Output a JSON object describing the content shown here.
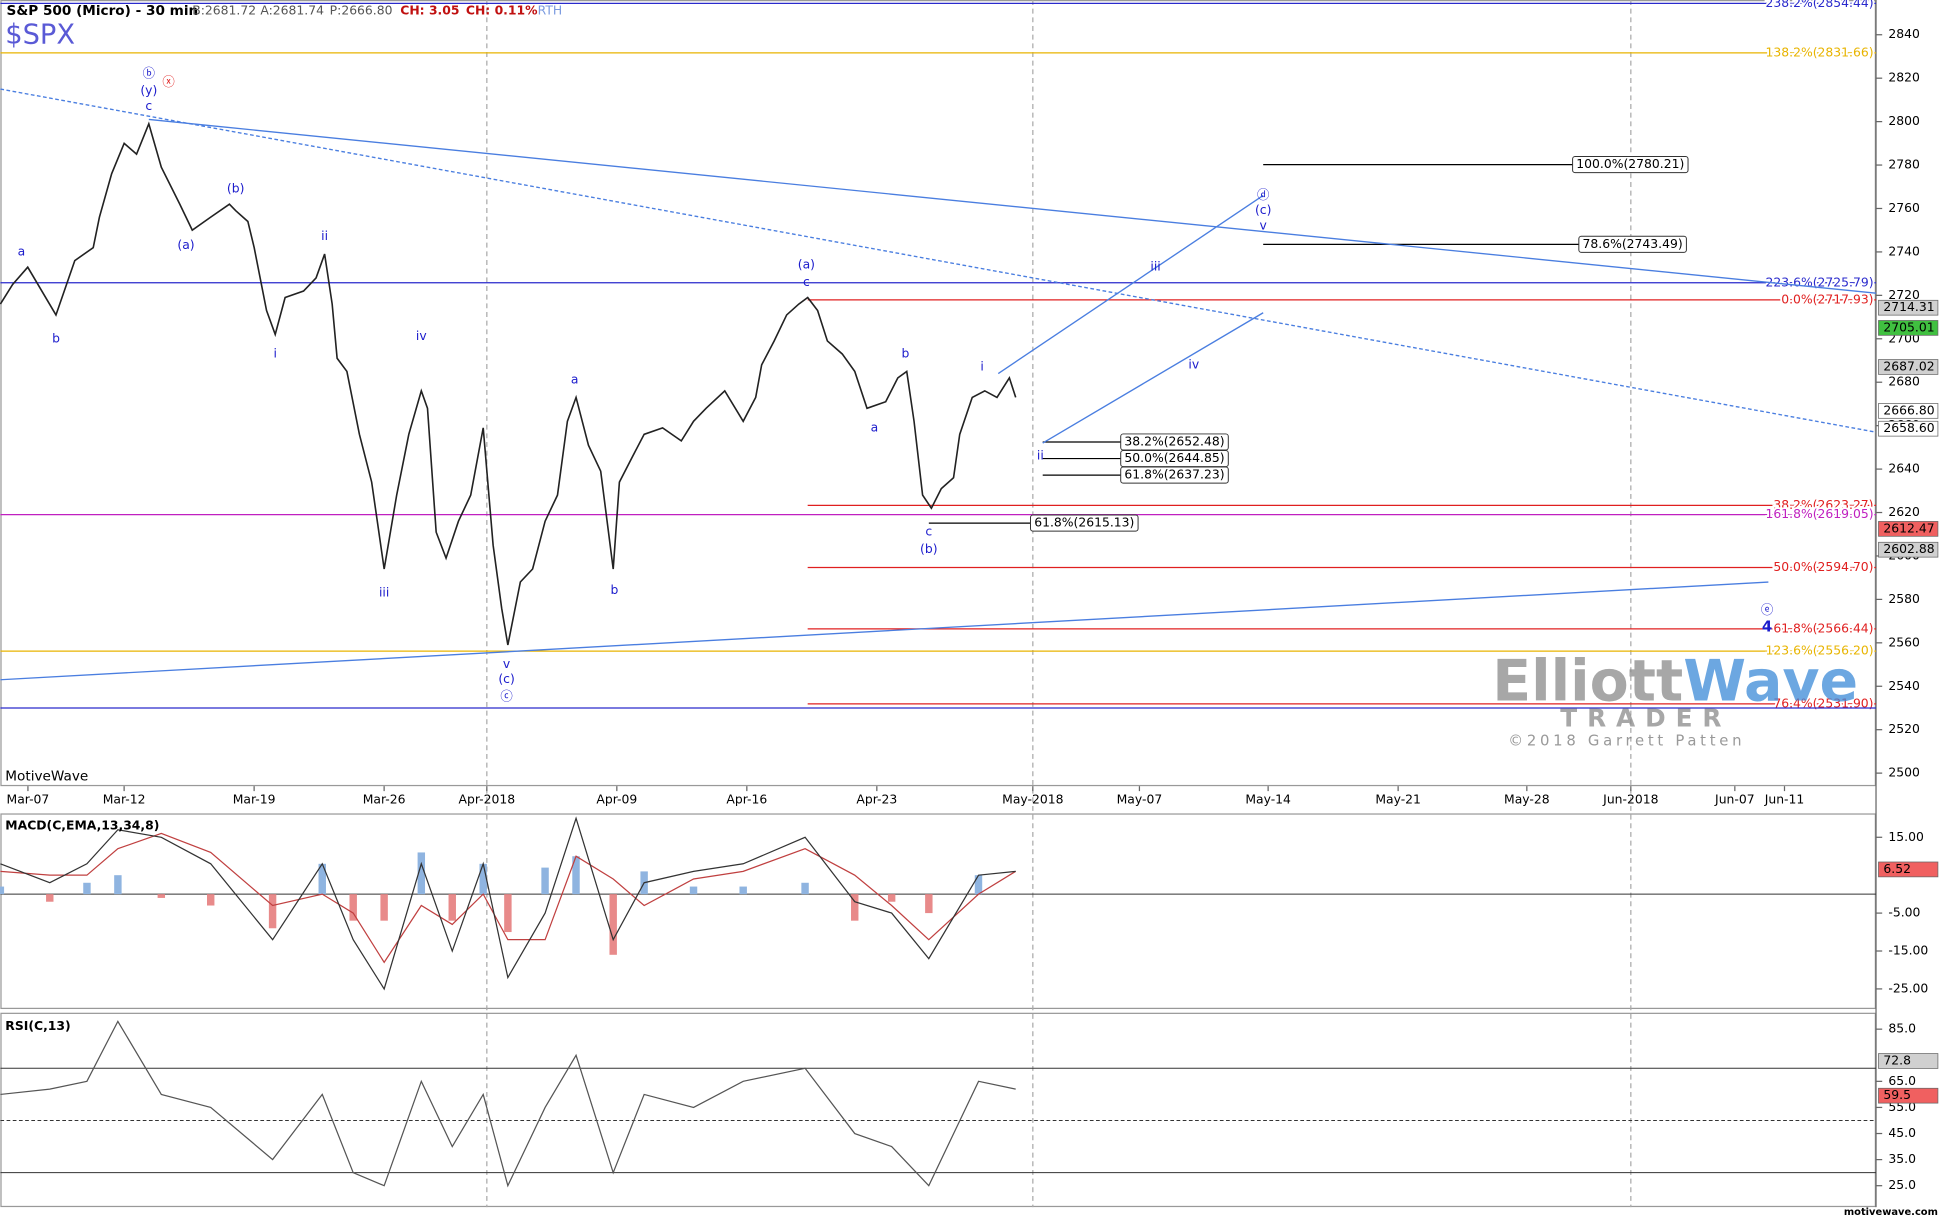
{
  "chart_data": [
    {
      "type": "line",
      "title": "S&P 500 (Micro) - 30 min",
      "symbol": "$SPX",
      "quote": [
        "B:2681.72",
        "A:2681.74",
        "P:2666.80"
      ],
      "change": [
        "CH: 3.05",
        "CH: 0.11%"
      ],
      "session": "RTH",
      "source": "MotiveWave",
      "color": "#222222",
      "annotation_color": "#1c1ccc",
      "xlim": [
        -4.76,
        67.38
      ],
      "ylim": [
        2494,
        2856
      ],
      "yticks": [
        2500,
        2520,
        2540,
        2560,
        2580,
        2600,
        2620,
        2640,
        2660,
        2680,
        2700,
        2720,
        2740,
        2760,
        2780,
        2800,
        2820,
        2840
      ],
      "xticks": [
        {
          "value": -3.7,
          "label": "Mar-07"
        },
        {
          "value": 0,
          "label": "Mar-12"
        },
        {
          "value": 5,
          "label": "Mar-19"
        },
        {
          "value": 10,
          "label": "Mar-26"
        },
        {
          "value": 13.95,
          "label": "Apr-2018"
        },
        {
          "value": 18.95,
          "label": "Apr-09"
        },
        {
          "value": 23.95,
          "label": "Apr-16"
        },
        {
          "value": 28.95,
          "label": "Apr-23"
        },
        {
          "value": 34.95,
          "label": "May-2018"
        },
        {
          "value": 39.05,
          "label": "May-07"
        },
        {
          "value": 44,
          "label": "May-14"
        },
        {
          "value": 49,
          "label": "May-21"
        },
        {
          "value": 53.95,
          "label": "May-28"
        },
        {
          "value": 57.95,
          "label": "Jun-2018"
        },
        {
          "value": 61.95,
          "label": "Jun-07"
        },
        {
          "value": 63.86,
          "label": "Jun-11"
        }
      ],
      "xgrid": [
        13.95,
        34.95,
        57.95
      ],
      "x": [
        -4.76,
        -4.29,
        -3.71,
        -2.62,
        -1.9,
        -1.19,
        -0.95,
        -0.48,
        0,
        0.48,
        0.95,
        1.43,
        2.14,
        2.62,
        3.33,
        4.05,
        4.29,
        4.76,
        5,
        5.48,
        5.81,
        6.19,
        6.9,
        7.38,
        7.71,
        8,
        8.19,
        8.57,
        9.05,
        9.52,
        10,
        10.48,
        10.95,
        11.43,
        11.67,
        12,
        12.38,
        12.86,
        13.33,
        13.81,
        14.19,
        14.52,
        14.76,
        15.24,
        15.71,
        16.19,
        16.67,
        17.05,
        17.38,
        17.86,
        18.33,
        18.81,
        19.05,
        19.52,
        20,
        20.71,
        21.43,
        21.9,
        22.38,
        23.1,
        23.81,
        24.29,
        24.52,
        25,
        25.48,
        25.95,
        26.29,
        26.67,
        27.05,
        27.62,
        28.1,
        28.57,
        29.29,
        29.76,
        30.1,
        30.38,
        30.71,
        31.05,
        31.43,
        31.9,
        32.14,
        32.62,
        33.1,
        33.57,
        34.05,
        34.29
      ],
      "values": [
        2716,
        2725,
        2733,
        2711,
        2736,
        2742,
        2756,
        2776,
        2790,
        2785,
        2799,
        2779,
        2762,
        2750,
        2756,
        2762,
        2759,
        2754,
        2742,
        2713,
        2702,
        2719,
        2722,
        2728,
        2739,
        2716,
        2691,
        2685,
        2656,
        2634,
        2594,
        2628,
        2656,
        2676,
        2668,
        2611,
        2599,
        2616,
        2628,
        2659,
        2605,
        2576,
        2559,
        2588,
        2594,
        2616,
        2628,
        2662,
        2673,
        2651,
        2639,
        2594,
        2634,
        2645,
        2656,
        2659,
        2653,
        2662,
        2668,
        2676,
        2662,
        2673,
        2688,
        2699,
        2711,
        2716,
        2719,
        2713,
        2699,
        2693,
        2685,
        2668,
        2671,
        2682,
        2685,
        2662,
        2628,
        2622,
        2631,
        2636,
        2656,
        2673,
        2676,
        2673,
        2682,
        2673
      ],
      "levels": [
        {
          "label": "238.2%(2854.44)",
          "value": 2854.44,
          "color": "#2a2acc"
        },
        {
          "label": "138.2%(2831.66)",
          "value": 2831.66,
          "color": "#e8b400"
        },
        {
          "label": "100.0%(2780.21)",
          "value": 2780.21,
          "color": "#000000",
          "x0": 43.81,
          "x1": 55.71,
          "boxed": true
        },
        {
          "label": "78.6%(2743.49)",
          "value": 2743.49,
          "color": "#000000",
          "x0": 43.81,
          "x1": 55.95,
          "boxed": true
        },
        {
          "label": "223.6%(2725.79)",
          "value": 2725.79,
          "color": "#2a2acc"
        },
        {
          "label": "0.0%(2717.93)",
          "value": 2717.93,
          "color": "#e02020",
          "x0": 26.29
        },
        {
          "label": "38.2%(2652.48)",
          "value": 2652.48,
          "color": "#000000",
          "x0": 35.33,
          "x1": 38.33,
          "boxed": true
        },
        {
          "label": "50.0%(2644.85)",
          "value": 2644.85,
          "color": "#000000",
          "x0": 35.33,
          "x1": 38.33,
          "boxed": true
        },
        {
          "label": "61.8%(2637.23)",
          "value": 2637.23,
          "color": "#000000",
          "x0": 35.33,
          "x1": 38.33,
          "boxed": true
        },
        {
          "label": "38.2%(2623.27)",
          "value": 2623.27,
          "color": "#e02020",
          "x0": 26.29
        },
        {
          "label": "161.8%(2619.05)",
          "value": 2619.05,
          "color": "#c020c0"
        },
        {
          "label": "61.8%(2615.13)",
          "value": 2615.13,
          "color": "#000000",
          "x0": 30.95,
          "x1": 34.86,
          "boxed": true
        },
        {
          "label": "50.0%(2594.70)",
          "value": 2594.7,
          "color": "#e02020",
          "x0": 26.29
        },
        {
          "label": "61.8%(2566.44)",
          "value": 2566.44,
          "color": "#e02020",
          "x0": 26.29
        },
        {
          "label": "123.6%(2556.20)",
          "value": 2556.2,
          "color": "#e8b400"
        },
        {
          "label": "76.4%(2531.90)",
          "value": 2531.9,
          "color": "#e02020",
          "x0": 26.29
        },
        {
          "value": 2530,
          "color": "#2a2acc"
        }
      ],
      "trendlines": [
        {
          "x": [
            0.95,
            67.38
          ],
          "y": [
            2801,
            2721
          ],
          "color": "#4a7ee0"
        },
        {
          "x": [
            -4.76,
            67.38
          ],
          "y": [
            2815,
            2657
          ],
          "color": "#4a7ee0",
          "dash": true
        },
        {
          "x": [
            -4.76,
            63.24
          ],
          "y": [
            2543,
            2588
          ],
          "color": "#4a7ee0"
        },
        {
          "x": [
            33.62,
            43.81
          ],
          "y": [
            2684,
            2766
          ],
          "color": "#4a7ee0"
        },
        {
          "x": [
            35.33,
            43.81
          ],
          "y": [
            2652,
            2712
          ],
          "color": "#4a7ee0"
        }
      ],
      "annotations": [
        {
          "label": "ⓑ",
          "x": 0.95,
          "y": 2822
        },
        {
          "label": "(y)",
          "x": 0.95,
          "y": 2814
        },
        {
          "label": "ⓧ",
          "x": 1.71,
          "y": 2818,
          "color": "#e02020"
        },
        {
          "label": "c",
          "x": 0.95,
          "y": 2807
        },
        {
          "label": "a",
          "x": -3.95,
          "y": 2740
        },
        {
          "label": "b",
          "x": -2.62,
          "y": 2700
        },
        {
          "label": "(a)",
          "x": 2.38,
          "y": 2743
        },
        {
          "label": "(b)",
          "x": 4.29,
          "y": 2769
        },
        {
          "label": "i",
          "x": 5.81,
          "y": 2693
        },
        {
          "label": "ii",
          "x": 7.71,
          "y": 2747
        },
        {
          "label": "iv",
          "x": 11.43,
          "y": 2701
        },
        {
          "label": "iii",
          "x": 10,
          "y": 2583
        },
        {
          "label": "v",
          "x": 14.71,
          "y": 2550
        },
        {
          "label": "(c)",
          "x": 14.71,
          "y": 2543
        },
        {
          "label": "ⓒ",
          "x": 14.71,
          "y": 2535
        },
        {
          "label": "a",
          "x": 17.33,
          "y": 2681
        },
        {
          "label": "b",
          "x": 18.86,
          "y": 2584
        },
        {
          "label": "(a)",
          "x": 26.24,
          "y": 2734
        },
        {
          "label": "c",
          "x": 26.24,
          "y": 2726
        },
        {
          "label": "b",
          "x": 30.05,
          "y": 2693
        },
        {
          "label": "a",
          "x": 28.86,
          "y": 2659
        },
        {
          "label": "i",
          "x": 33,
          "y": 2687
        },
        {
          "label": "c",
          "x": 30.95,
          "y": 2611
        },
        {
          "label": "(b)",
          "x": 30.95,
          "y": 2603
        },
        {
          "label": "ii",
          "x": 35.24,
          "y": 2646
        },
        {
          "label": "iii",
          "x": 39.67,
          "y": 2733
        },
        {
          "label": "iv",
          "x": 41.14,
          "y": 2688
        },
        {
          "label": "ⓓ",
          "x": 43.81,
          "y": 2766
        },
        {
          "label": "(c)",
          "x": 43.81,
          "y": 2759
        },
        {
          "label": "v",
          "x": 43.81,
          "y": 2752
        },
        {
          "label": "ⓔ",
          "x": 63.19,
          "y": 2575
        },
        {
          "label": "4",
          "x": 63.19,
          "y": 2567,
          "bold": true
        }
      ],
      "price_markers": [
        {
          "value": 2714.31,
          "color": "#d0d0d0"
        },
        {
          "value": 2705.01,
          "color": "#40c040"
        },
        {
          "value": 2687.02,
          "color": "#d0d0d0"
        },
        {
          "value": 2666.8,
          "label": "2666.80",
          "color": "#ffffff"
        },
        {
          "value": 2658.6,
          "label": "2658.60",
          "color": "#ffffff"
        },
        {
          "value": 2612.47,
          "color": "#f06060"
        },
        {
          "value": 2602.88,
          "color": "#d0d0d0"
        }
      ]
    },
    {
      "type": "macd",
      "title": "MACD(C,EMA,13,34,8)",
      "ylim": [
        -30.3,
        21.3
      ],
      "yticks": [
        {
          "value": 15,
          "label": "15.00"
        },
        {
          "value": -5,
          "label": "-5.00"
        },
        {
          "value": -15,
          "label": "-15.00"
        },
        {
          "value": -25,
          "label": "-25.00"
        }
      ],
      "bands": [
        0
      ],
      "color": "#333333",
      "signal_color": "#c04040",
      "histogram_colors": [
        "#8fb4e0",
        "#e88a8a"
      ],
      "x": [
        -4.76,
        -2.86,
        -1.43,
        -0.24,
        1.43,
        3.33,
        5.71,
        7.62,
        8.81,
        10,
        11.43,
        12.62,
        13.81,
        14.76,
        16.19,
        17.38,
        18.81,
        20,
        21.9,
        23.81,
        26.19,
        28.1,
        29.52,
        30.95,
        32.86,
        34.29
      ],
      "values": [
        8,
        3,
        8,
        17,
        15,
        8,
        -12,
        8,
        -12,
        -25,
        8,
        -15,
        8,
        -22,
        -5,
        20,
        -12,
        3,
        6,
        8,
        15,
        -2,
        -5,
        -17,
        5,
        6
      ],
      "signal": [
        6,
        5,
        5,
        12,
        16,
        11,
        -3,
        0,
        -5,
        -18,
        -3,
        -8,
        0,
        -12,
        -12,
        10,
        4,
        -3,
        4,
        6,
        12,
        5,
        -3,
        -12,
        0,
        6
      ],
      "histogram": [
        2,
        -2,
        3,
        5,
        -1,
        -3,
        -9,
        8,
        -7,
        -7,
        11,
        -7,
        8,
        -10,
        7,
        10,
        -16,
        6,
        2,
        2,
        3,
        -7,
        -2,
        -5,
        5,
        0
      ],
      "price_markers": [
        {
          "value": 6.52,
          "color": "#f06060"
        }
      ]
    },
    {
      "type": "rsi",
      "title": "RSI(C,13)",
      "ylim": [
        16.8,
        91.3
      ],
      "yticks": [
        {
          "value": 85,
          "label": "85.0"
        },
        {
          "value": 65,
          "label": "65.0"
        },
        {
          "value": 55,
          "label": "55.0"
        },
        {
          "value": 45,
          "label": "45.0"
        },
        {
          "value": 35,
          "label": "35.0"
        },
        {
          "value": 25,
          "label": "25.0"
        }
      ],
      "bands": [
        70,
        50,
        30
      ],
      "color": "#555555",
      "x": [
        -4.76,
        -2.86,
        -1.43,
        -0.24,
        1.43,
        3.33,
        5.71,
        7.62,
        8.81,
        10,
        11.43,
        12.62,
        13.81,
        14.76,
        16.19,
        17.38,
        18.81,
        20,
        21.9,
        23.81,
        26.19,
        28.1,
        29.52,
        30.95,
        32.86,
        34.29
      ],
      "values": [
        60,
        62,
        65,
        88,
        60,
        55,
        35,
        60,
        30,
        25,
        65,
        40,
        60,
        25,
        55,
        75,
        30,
        60,
        55,
        65,
        70,
        45,
        40,
        25,
        65,
        62
      ],
      "price_markers": [
        {
          "value": 72.8,
          "color": "#d0d0d0"
        },
        {
          "value": 59.5,
          "color": "#f06060"
        }
      ]
    }
  ],
  "watermark": {
    "brand": [
      "Elliott",
      "Wave"
    ],
    "sub": "TRADER",
    "copyright": "©2018 Garrett Patten"
  },
  "footer": "motivewave.com"
}
